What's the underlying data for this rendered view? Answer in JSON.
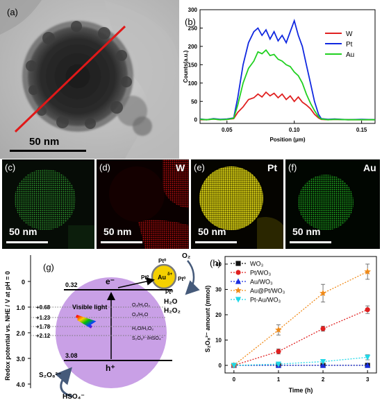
{
  "panel_a": {
    "label": "(a)",
    "scale_text": "50 nm"
  },
  "panel_b": {
    "label": "(b)"
  },
  "maps": [
    {
      "label": "(c)",
      "element": "",
      "scale_text": "50 nm",
      "color": "#2aa52a"
    },
    {
      "label": "(d)",
      "element": "W",
      "scale_text": "50 nm",
      "color": "#d01010"
    },
    {
      "label": "(e)",
      "element": "Pt",
      "scale_text": "50 nm",
      "color": "#e8e000"
    },
    {
      "label": "(f)",
      "element": "Au",
      "scale_text": "50 nm",
      "color": "#22b822"
    }
  ],
  "panel_g": {
    "label": "(g)",
    "ylabel": "Redox potential vs. NHE / V at pH = 0",
    "ticks": [
      "0",
      "1.0",
      "2.0",
      "3.0",
      "4.0"
    ],
    "cb_value": "0.32",
    "vb_value": "3.08",
    "electron": "e⁻",
    "hole": "h⁺",
    "levels": [
      "+0.68",
      "+1.23",
      "+1.78",
      "+2.12"
    ],
    "couples": [
      "O₂/H₂O₂",
      "O₂/H₂O",
      "H₂O/H₂O₂",
      "S₂O₈²⁻/HSO₄⁻"
    ],
    "visible_light": "Visible light",
    "particle_label": "Au",
    "particle_sup": "δ+",
    "pt_labels": [
      "Pt⁰",
      "Pt⁰",
      "Pt⁰",
      "Pt⁰"
    ],
    "o2": "O₂",
    "h2o": "H₂O",
    "h2o2": "H₂O₂",
    "product": "S₂O₈²⁻",
    "reactant": "HSO₄⁻",
    "colors": {
      "circle": "#c9a0e6",
      "particle": "#f4d000",
      "arrow": "#455a7a"
    }
  },
  "chart_data": [
    {
      "type": "line",
      "panel": "(b)",
      "title": "",
      "xlabel": "Position (μm)",
      "ylabel": "Counts(a.u.)",
      "xlim": [
        0.03,
        0.16
      ],
      "ylim": [
        -10,
        300
      ],
      "xticks": [
        "0.05",
        "0.10",
        "0.15"
      ],
      "yticks": [
        "0",
        "50",
        "100",
        "150",
        "200",
        "250",
        "300"
      ],
      "legend_position": "top-right",
      "series": [
        {
          "name": "W",
          "color": "#e02020",
          "x": [
            0.03,
            0.035,
            0.04,
            0.045,
            0.05,
            0.055,
            0.058,
            0.062,
            0.066,
            0.07,
            0.073,
            0.076,
            0.079,
            0.082,
            0.085,
            0.088,
            0.091,
            0.094,
            0.097,
            0.1,
            0.103,
            0.106,
            0.109,
            0.112,
            0.115,
            0.118,
            0.12,
            0.125,
            0.13,
            0.14,
            0.15,
            0.16
          ],
          "y": [
            0,
            0,
            2,
            0,
            1,
            3,
            20,
            35,
            55,
            60,
            70,
            62,
            75,
            65,
            72,
            60,
            70,
            55,
            65,
            50,
            62,
            48,
            40,
            30,
            15,
            5,
            1,
            0,
            1,
            0,
            0,
            0
          ]
        },
        {
          "name": "Pt",
          "color": "#1028e0",
          "x": [
            0.03,
            0.035,
            0.04,
            0.045,
            0.05,
            0.055,
            0.058,
            0.062,
            0.066,
            0.07,
            0.073,
            0.076,
            0.079,
            0.082,
            0.085,
            0.088,
            0.091,
            0.094,
            0.097,
            0.1,
            0.103,
            0.106,
            0.109,
            0.112,
            0.115,
            0.118,
            0.12,
            0.125,
            0.13,
            0.14,
            0.15,
            0.16
          ],
          "y": [
            2,
            0,
            3,
            1,
            2,
            5,
            60,
            150,
            210,
            240,
            250,
            230,
            245,
            220,
            240,
            215,
            230,
            210,
            240,
            270,
            230,
            200,
            150,
            100,
            50,
            15,
            3,
            1,
            2,
            0,
            1,
            0
          ]
        },
        {
          "name": "Au",
          "color": "#20d020",
          "x": [
            0.03,
            0.035,
            0.04,
            0.045,
            0.05,
            0.055,
            0.058,
            0.062,
            0.066,
            0.07,
            0.073,
            0.076,
            0.079,
            0.082,
            0.085,
            0.088,
            0.091,
            0.094,
            0.097,
            0.1,
            0.103,
            0.106,
            0.109,
            0.112,
            0.115,
            0.118,
            0.12,
            0.125,
            0.13,
            0.14,
            0.15,
            0.16
          ],
          "y": [
            1,
            0,
            2,
            0,
            1,
            4,
            40,
            100,
            140,
            160,
            185,
            180,
            190,
            175,
            178,
            165,
            160,
            150,
            145,
            130,
            120,
            100,
            70,
            45,
            25,
            8,
            2,
            0,
            1,
            0,
            0,
            0
          ]
        }
      ]
    },
    {
      "type": "line",
      "panel": "(h)",
      "title": "",
      "xlabel": "Time (h)",
      "ylabel": "S₂O₈²⁻ amount (mmol)",
      "xlim": [
        -0.2,
        3.2
      ],
      "ylim": [
        -3,
        43
      ],
      "xticks": [
        "0",
        "1",
        "2",
        "3"
      ],
      "yticks": [
        "0",
        "10",
        "20",
        "30",
        "40"
      ],
      "legend_position": "top-left",
      "categories": [
        0,
        1,
        2,
        3
      ],
      "series": [
        {
          "name": "WO₃",
          "color": "#111111",
          "marker": "square",
          "values": [
            0,
            0,
            0,
            0
          ],
          "errors": [
            0,
            0,
            0,
            0
          ]
        },
        {
          "name": "Pt/WO₃",
          "color": "#e02020",
          "marker": "circle",
          "values": [
            0,
            5.5,
            14.5,
            22
          ],
          "errors": [
            0,
            1,
            1,
            1.5
          ]
        },
        {
          "name": "Au/WO₃",
          "color": "#1a2ee0",
          "marker": "triangle-up",
          "values": [
            0,
            0,
            0,
            0
          ],
          "errors": [
            0,
            0,
            0,
            0
          ]
        },
        {
          "name": "Au@Pt/WO₃",
          "color": "#f08a18",
          "marker": "star",
          "values": [
            0,
            14,
            28.5,
            37
          ],
          "errors": [
            0,
            2,
            3.5,
            3
          ]
        },
        {
          "name": "Pt-Au/WO₃",
          "color": "#20d8e8",
          "marker": "triangle-down",
          "values": [
            0,
            0.5,
            1.5,
            3.2
          ],
          "errors": [
            0,
            0.5,
            0.8,
            1
          ]
        }
      ]
    }
  ]
}
